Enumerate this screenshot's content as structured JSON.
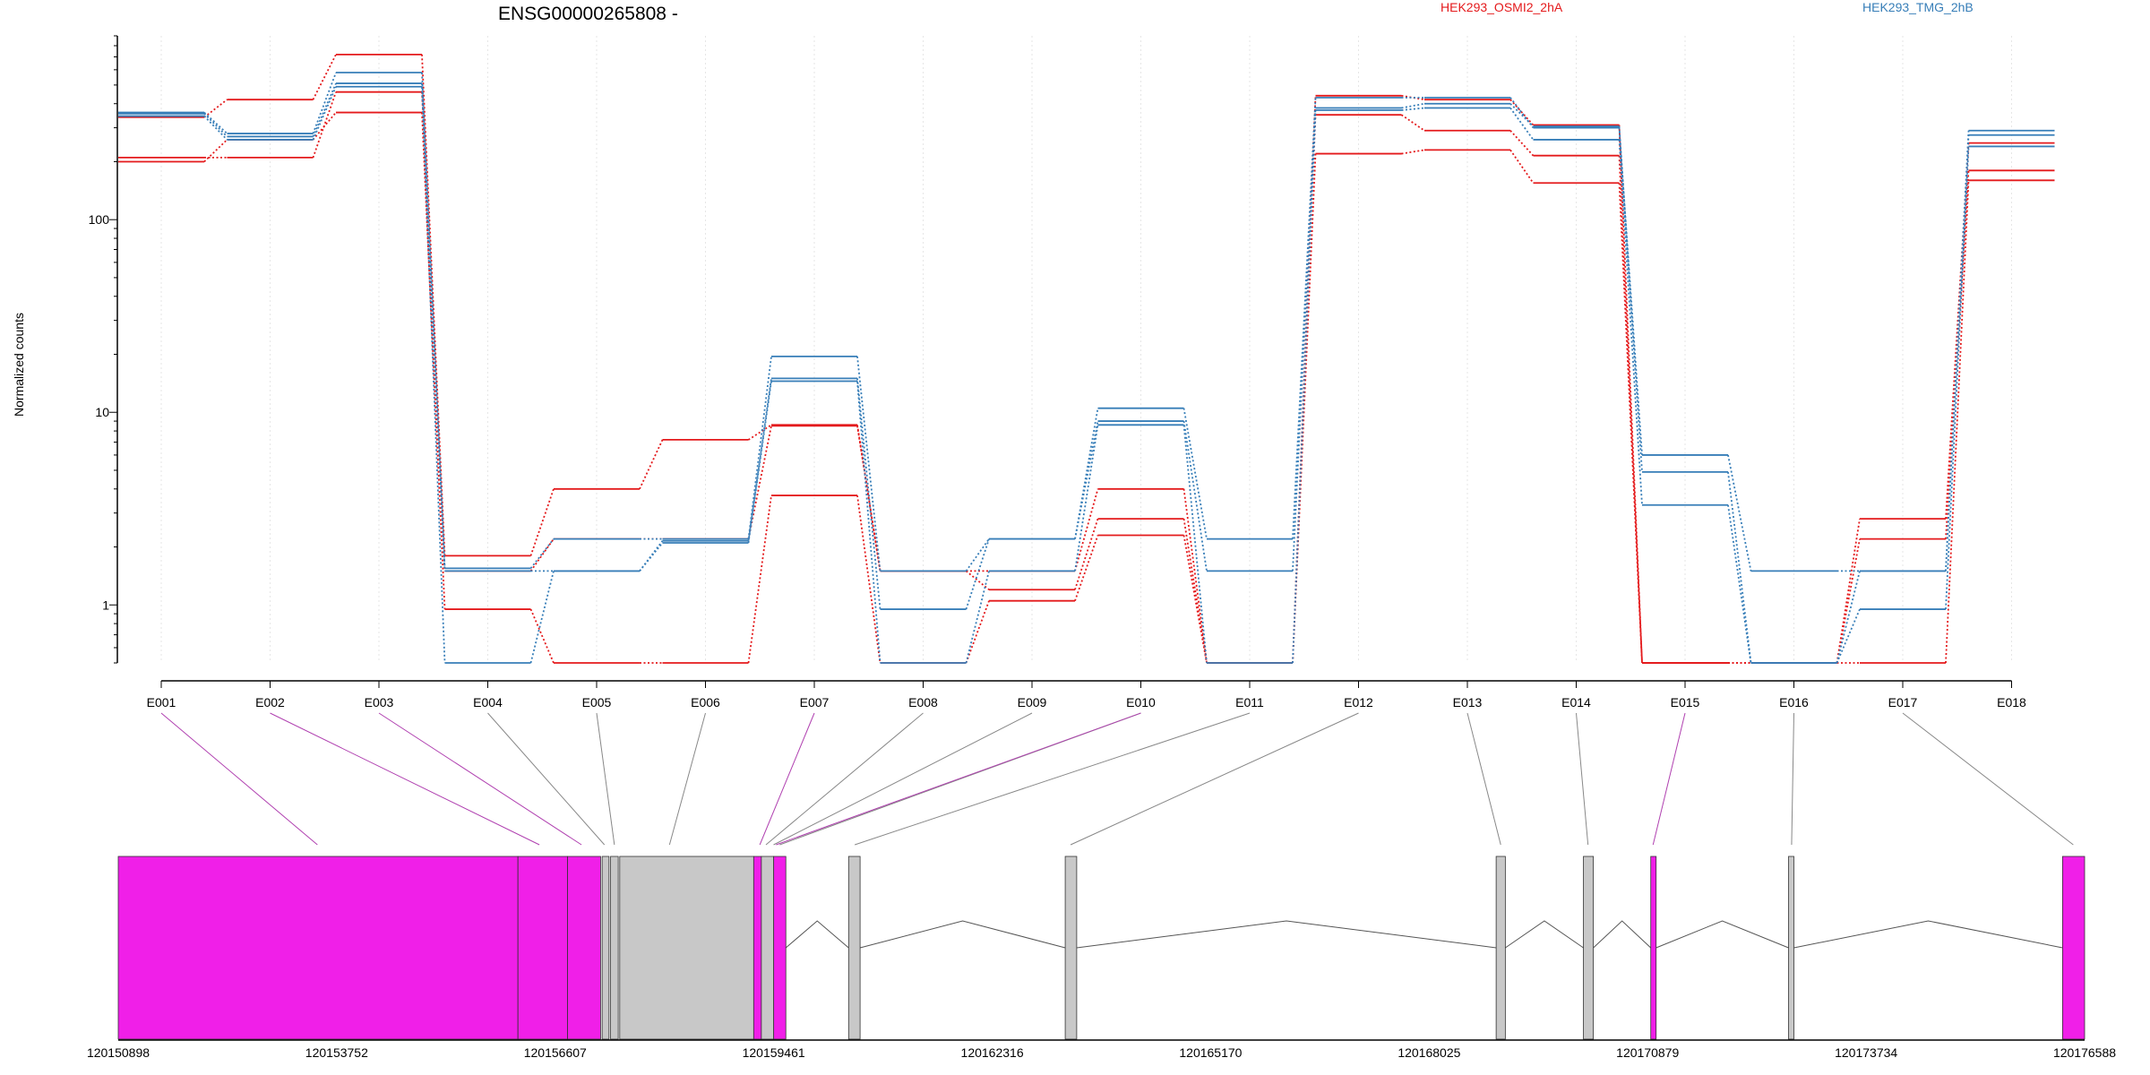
{
  "chart_data": {
    "type": "line",
    "title": "ENSG00000265808 -",
    "ylabel": "Normalized counts",
    "yscale": "log",
    "ylim": [
      0.5,
      900
    ],
    "y_ticks": [
      1,
      10,
      100
    ],
    "y_tick_labels": [
      "1",
      "10",
      "100"
    ],
    "grid": "vertical dotted",
    "legend_placement": "top",
    "categories": [
      "E001",
      "E002",
      "E003",
      "E004",
      "E005",
      "E006",
      "E007",
      "E008",
      "E009",
      "E010",
      "E011",
      "E012",
      "E013",
      "E014",
      "E015",
      "E016",
      "E017",
      "E018"
    ],
    "groups": [
      {
        "name": "HEK293_OSMI2_2hA",
        "color": "#e41a1c"
      },
      {
        "name": "HEK293_TMG_2hB",
        "color": "#377eb8"
      }
    ],
    "series": [
      {
        "group": 0,
        "values": [
          340,
          420,
          720,
          1.8,
          4.0,
          7.2,
          8.6,
          1.5,
          1.5,
          4.0,
          0.5,
          440,
          420,
          310,
          0.5,
          0.5,
          2.8,
          250
        ]
      },
      {
        "group": 0,
        "values": [
          210,
          210,
          460,
          1.5,
          2.2,
          2.2,
          8.5,
          1.5,
          1.2,
          2.8,
          0.5,
          350,
          290,
          215,
          0.5,
          0.5,
          2.2,
          180
        ]
      },
      {
        "group": 0,
        "values": [
          200,
          260,
          360,
          0.95,
          0.5,
          0.5,
          3.7,
          0.5,
          1.05,
          2.3,
          0.5,
          220,
          230,
          155,
          0.5,
          0.5,
          0.5,
          160
        ]
      },
      {
        "group": 1,
        "values": [
          360,
          280,
          580,
          1.55,
          2.2,
          2.2,
          19.5,
          1.5,
          2.2,
          10.5,
          2.2,
          430,
          430,
          300,
          6.0,
          1.5,
          1.5,
          290
        ]
      },
      {
        "group": 1,
        "values": [
          355,
          270,
          510,
          1.5,
          1.5,
          2.15,
          15,
          0.95,
          2.2,
          9.0,
          1.5,
          380,
          400,
          305,
          4.9,
          0.5,
          1.5,
          275
        ]
      },
      {
        "group": 1,
        "values": [
          345,
          260,
          490,
          0.5,
          1.5,
          2.1,
          14.5,
          0.5,
          1.5,
          8.6,
          0.5,
          370,
          380,
          260,
          3.3,
          0.5,
          0.95,
          240
        ]
      }
    ],
    "genomic_coordinates": [
      "120150898",
      "120153752",
      "120156607",
      "120159461",
      "120162316",
      "120165170",
      "120168025",
      "120170879",
      "120173734",
      "120176588"
    ],
    "gene_model": {
      "exon_color_significant": "#f01fe8",
      "exon_color_normal": "#c8c8c8",
      "exon_significance": [
        true,
        true,
        true,
        false,
        false,
        false,
        true,
        false,
        false,
        true,
        false,
        false,
        false,
        false,
        true,
        false,
        false,
        true
      ],
      "range": [
        120150898,
        120176588
      ],
      "blocks": [
        {
          "start": 120150898,
          "end": 120156120,
          "exons": [
            1
          ]
        },
        {
          "start": 120156120,
          "end": 120156768,
          "exons": [
            2
          ]
        },
        {
          "start": 120156768,
          "end": 120157200,
          "exons": [
            3
          ]
        },
        {
          "start": 120157220,
          "end": 120157310,
          "exons": [
            4
          ]
        },
        {
          "start": 120157330,
          "end": 120157430,
          "exons": [
            5
          ]
        },
        {
          "start": 120157450,
          "end": 120159200,
          "exons": [
            6
          ]
        },
        {
          "start": 120159200,
          "end": 120159300,
          "exons": [
            7
          ]
        },
        {
          "start": 120159300,
          "end": 120159461,
          "exons": [
            8
          ]
        },
        {
          "start": 120159461,
          "end": 120159620,
          "exons": [
            9,
            10
          ]
        },
        {
          "start": 120160440,
          "end": 120160590,
          "exons": [
            11
          ]
        },
        {
          "start": 120163270,
          "end": 120163420,
          "exons": [
            12
          ]
        },
        {
          "start": 120168900,
          "end": 120169020,
          "exons": [
            13
          ]
        },
        {
          "start": 120170040,
          "end": 120170170,
          "exons": [
            14
          ]
        },
        {
          "start": 120170920,
          "end": 120170990,
          "exons": [
            15
          ]
        },
        {
          "start": 120172720,
          "end": 120172790,
          "exons": [
            16
          ]
        },
        {
          "start": 120176300,
          "end": 120176588,
          "exons": [
            18
          ]
        }
      ],
      "connector_targets": [
        120153500,
        120156400,
        120156950,
        120157250,
        120157380,
        120158100,
        120159280,
        120159360,
        120159460,
        120159540,
        120160520,
        120163340,
        120168960,
        120170100,
        120170950,
        120172760,
        120176440
      ]
    }
  }
}
